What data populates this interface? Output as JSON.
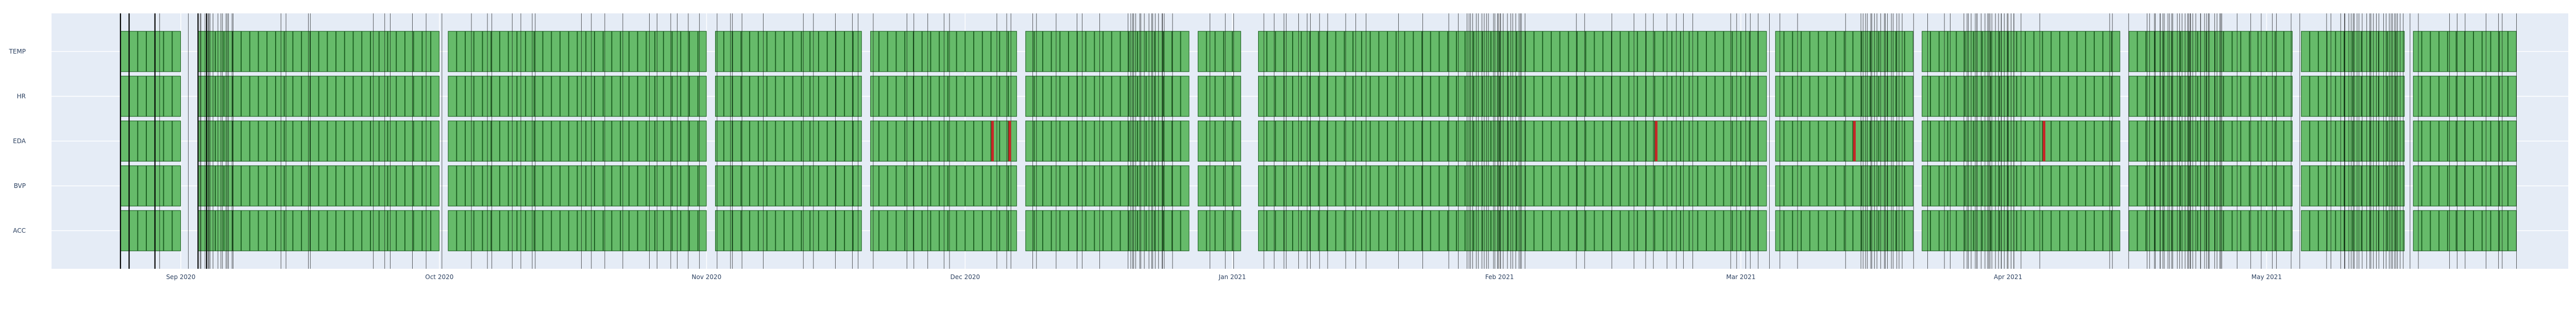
{
  "chart_data": {
    "type": "timeline",
    "title": "",
    "xlabel": "",
    "ylabel": "",
    "x_range": [
      "2020-08-17",
      "2021-06-05"
    ],
    "data_span": [
      "2020-08-25",
      "2021-05-30"
    ],
    "rows": [
      "TEMP",
      "HR",
      "EDA",
      "BVP",
      "ACC"
    ],
    "x_ticks": [
      {
        "date": "2020-09-01",
        "label": "Sep 2020"
      },
      {
        "date": "2020-10-01",
        "label": "Oct 2020"
      },
      {
        "date": "2020-11-01",
        "label": "Nov 2020"
      },
      {
        "date": "2020-12-01",
        "label": "Dec 2020"
      },
      {
        "date": "2021-01-01",
        "label": "Jan 2021"
      },
      {
        "date": "2021-02-01",
        "label": "Feb 2021"
      },
      {
        "date": "2021-03-01",
        "label": "Mar 2021"
      },
      {
        "date": "2021-04-01",
        "label": "Apr 2021"
      },
      {
        "date": "2021-05-01",
        "label": "May 2021"
      }
    ],
    "gaps": [
      [
        "2020-09-01",
        "2020-09-03"
      ],
      [
        "2020-10-01",
        "2020-10-02"
      ],
      [
        "2020-11-01",
        "2020-11-02"
      ],
      [
        "2020-11-19",
        "2020-11-20"
      ],
      [
        "2020-12-07",
        "2020-12-08"
      ],
      [
        "2020-12-27",
        "2020-12-28"
      ],
      [
        "2021-01-02",
        "2021-01-04"
      ],
      [
        "2021-03-04",
        "2021-03-05"
      ],
      [
        "2021-03-21",
        "2021-03-22"
      ],
      [
        "2021-04-14",
        "2021-04-15"
      ],
      [
        "2021-05-04",
        "2021-05-05"
      ],
      [
        "2021-05-17",
        "2021-05-18"
      ]
    ],
    "dense_vlines": [
      [
        "2020-09-03",
        "2020-09-07"
      ],
      [
        "2020-12-20",
        "2020-12-24"
      ],
      [
        "2021-01-28",
        "2021-02-04"
      ],
      [
        "2021-03-15",
        "2021-03-20"
      ],
      [
        "2021-03-27",
        "2021-04-02"
      ],
      [
        "2021-04-17",
        "2021-04-26"
      ],
      [
        "2021-05-10",
        "2021-05-17"
      ]
    ],
    "flags": [
      {
        "row": "EDA",
        "date": "2020-12-04"
      },
      {
        "row": "EDA",
        "date": "2020-12-06"
      },
      {
        "row": "EDA",
        "date": "2021-02-19"
      },
      {
        "row": "EDA",
        "date": "2021-03-14"
      },
      {
        "row": "EDA",
        "date": "2021-04-05"
      }
    ],
    "colors": {
      "plot_bg": "#e5ecf6",
      "grid": "#ffffff",
      "bar_fill": "#66bb6a",
      "bar_edge": "#1b5e20",
      "vline": "#000000",
      "flag": "#c62828",
      "text": "#2a3f5f"
    }
  }
}
